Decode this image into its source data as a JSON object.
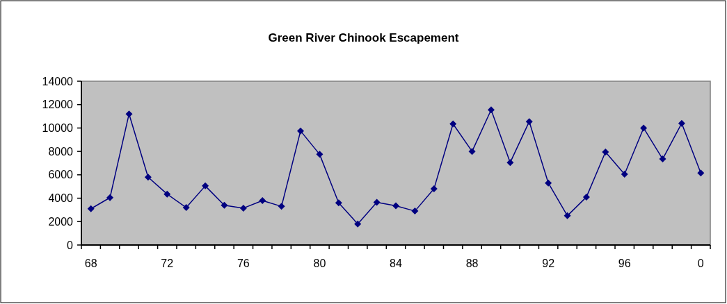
{
  "chart_data": {
    "type": "line",
    "title": "Green River Chinook Escapement",
    "categories": [
      "68",
      null,
      null,
      null,
      "72",
      null,
      null,
      null,
      "76",
      null,
      null,
      null,
      "80",
      null,
      null,
      null,
      "84",
      null,
      null,
      null,
      "88",
      null,
      null,
      null,
      "92",
      null,
      null,
      null,
      "96",
      null,
      null,
      null,
      "0"
    ],
    "series": [
      {
        "color": "#000080",
        "values": [
          3100,
          4050,
          11200,
          5800,
          4350,
          3200,
          5050,
          3400,
          3150,
          3800,
          3300,
          9750,
          7750,
          3600,
          1800,
          3650,
          3350,
          2900,
          4800,
          10350,
          8000,
          11550,
          7050,
          10550,
          5300,
          2500,
          4100,
          7950,
          6050,
          10000,
          7350,
          10400,
          6150
        ]
      }
    ],
    "ylim": [
      0,
      14000
    ],
    "yticks": [
      0,
      2000,
      4000,
      6000,
      8000,
      10000,
      12000,
      14000
    ],
    "grid": false,
    "marker": "diamond",
    "line_style": "solid"
  }
}
